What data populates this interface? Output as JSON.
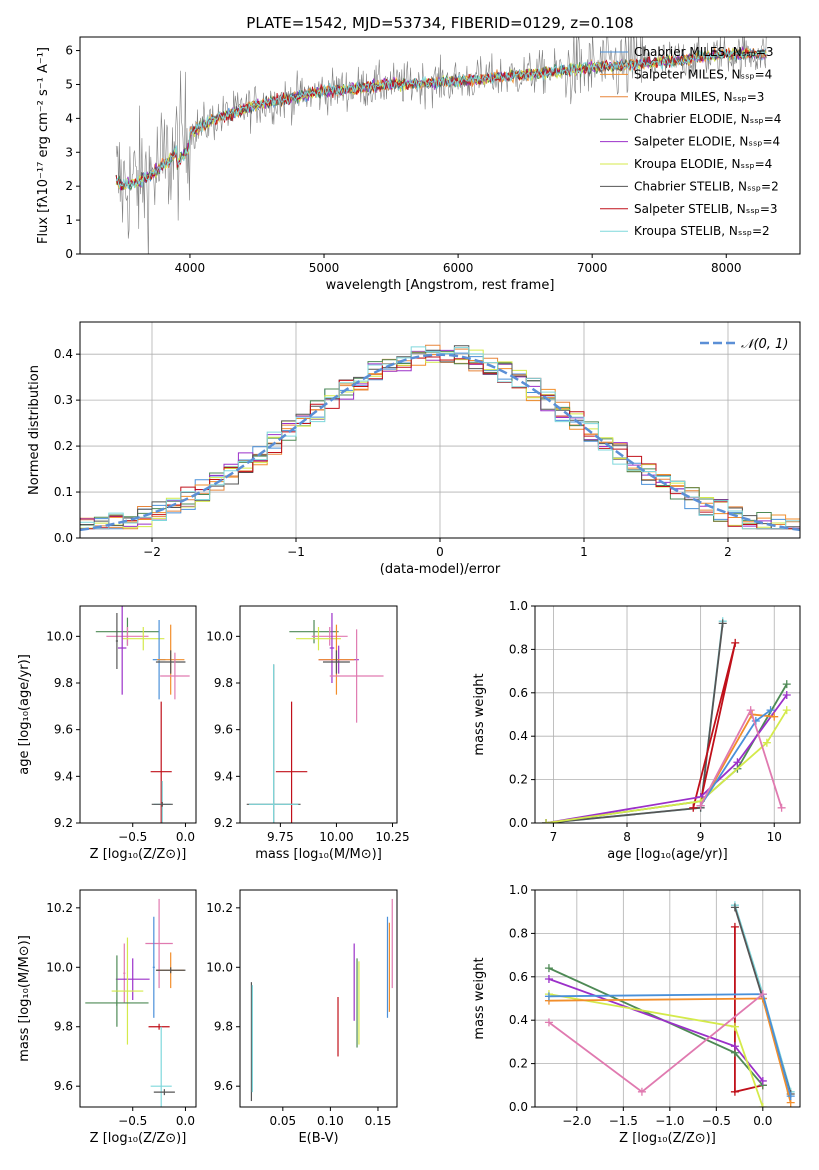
{
  "title": "PLATE=1542, MJD=53734, FIBERID=0129, z=0.108",
  "colors": {
    "chabrier_miles": "#4a90d9",
    "salpeter_miles": "#f28e2b",
    "kroupa_miles": "#e8853a",
    "chabrier_elodie": "#4e8a55",
    "salpeter_elodie": "#9b30c9",
    "kroupa_elodie": "#d4ea4b",
    "chabrier_stelib": "#555555",
    "salpeter_stelib": "#c0101a",
    "kroupa_stelib": "#7fd8dc",
    "pink": "#e07ab0",
    "gaussian": "#5b8fd6"
  },
  "chart_data": [
    {
      "id": "spectrum",
      "type": "line",
      "xlabel": "wavelength [Angstrom, rest frame]",
      "ylabel": "Flux [fλ10⁻¹⁷ erg cm⁻² s⁻¹ A⁻¹]",
      "xlim": [
        3180,
        8550
      ],
      "ylim": [
        0,
        6.4
      ],
      "xticks": [
        4000,
        5000,
        6000,
        7000,
        8000
      ],
      "yticks": [
        0,
        1,
        2,
        3,
        4,
        5,
        6
      ],
      "legend": "right",
      "series": [
        {
          "name": "Chabrier MILES, Nₛₛₚ=3"
        },
        {
          "name": "Salpeter MILES, Nₛₛₚ=4"
        },
        {
          "name": "Kroupa MILES, Nₛₛₚ=3"
        },
        {
          "name": "Chabrier ELODIE, Nₛₛₚ=4"
        },
        {
          "name": "Salpeter ELODIE, Nₛₛₚ=4"
        },
        {
          "name": "Kroupa ELODIE, Nₛₛₚ=4"
        },
        {
          "name": "Chabrier STELIB, Nₛₛₚ=2"
        },
        {
          "name": "Salpeter STELIB, Nₛₛₚ=3"
        },
        {
          "name": "Kroupa STELIB, Nₛₛₚ=2"
        }
      ],
      "continuum": {
        "x": [
          3450,
          3500,
          3600,
          3700,
          3800,
          3900,
          4000,
          4200,
          4500,
          5000,
          5500,
          6000,
          6500,
          7000,
          7500,
          8000,
          8300
        ],
        "y": [
          2.2,
          2.0,
          2.1,
          2.3,
          2.6,
          3.0,
          3.6,
          4.0,
          4.4,
          4.8,
          5.0,
          5.1,
          5.3,
          5.5,
          5.65,
          5.9,
          5.9
        ]
      }
    },
    {
      "id": "residuals",
      "type": "line",
      "xlabel": "(data-model)/error",
      "ylabel": "Normed distribution",
      "xlim": [
        -2.5,
        2.5
      ],
      "ylim": [
        0,
        0.47
      ],
      "xticks": [
        -2,
        -1,
        0,
        1,
        2
      ],
      "yticks": [
        0.0,
        0.1,
        0.2,
        0.3,
        0.4
      ],
      "grid": true,
      "legend": "top-right",
      "legend_label": "𝒩(0, 1)",
      "bin_width": 0.1
    },
    {
      "id": "age_vs_Z",
      "type": "scatter",
      "xlabel": "Z [log₁₀(Z/Z⊙)]",
      "ylabel": "age  [log₁₀(age/yr)]",
      "xlim": [
        -1.0,
        0.1
      ],
      "ylim": [
        9.2,
        10.13
      ],
      "xticks": [
        -0.5,
        0.0
      ],
      "yticks": [
        9.2,
        9.4,
        9.6,
        9.8,
        10.0
      ],
      "points": [
        {
          "x": -0.55,
          "y": 10.02,
          "xerr": 0.3,
          "yerr": 0.06,
          "c": "chabrier_elodie"
        },
        {
          "x": -0.55,
          "y": 10.0,
          "xerr": 0.2,
          "yerr": 0.04,
          "c": "pink"
        },
        {
          "x": -0.4,
          "y": 9.99,
          "xerr": 0.2,
          "yerr": 0.05,
          "c": "kroupa_elodie"
        },
        {
          "x": -0.6,
          "y": 9.95,
          "xerr": 0.04,
          "yerr": 0.2,
          "c": "salpeter_elodie"
        },
        {
          "x": -0.65,
          "y": 9.98,
          "xerr": 0.01,
          "yerr": 0.12,
          "c": "chabrier_stelib"
        },
        {
          "x": -0.25,
          "y": 9.9,
          "xerr": 0.06,
          "yerr": 0.17,
          "c": "chabrier_miles"
        },
        {
          "x": -0.14,
          "y": 9.9,
          "xerr": 0.13,
          "yerr": 0.15,
          "c": "salpeter_miles"
        },
        {
          "x": -0.14,
          "y": 9.89,
          "xerr": 0.14,
          "yerr": 0.05,
          "c": "chabrier_stelib"
        },
        {
          "x": -0.1,
          "y": 9.83,
          "xerr": 0.14,
          "yerr": 0.1,
          "c": "pink"
        },
        {
          "x": -0.23,
          "y": 9.42,
          "xerr": 0.1,
          "yerr": 0.3,
          "c": "salpeter_stelib"
        },
        {
          "x": -0.22,
          "y": 9.28,
          "xerr": 0.08,
          "yerr": 0.1,
          "c": "kroupa_stelib"
        },
        {
          "x": -0.22,
          "y": 9.28,
          "xerr": 0.1,
          "yerr": 0.01,
          "c": "chabrier_stelib"
        }
      ]
    },
    {
      "id": "age_vs_mass",
      "type": "scatter",
      "xlabel": "mass [log₁₀(M/M⊙)]",
      "xlim": [
        9.57,
        10.27
      ],
      "ylim": [
        9.2,
        10.13
      ],
      "xticks": [
        9.75,
        10.0,
        10.25
      ],
      "yticks": [
        9.2,
        9.4,
        9.6,
        9.8,
        10.0
      ],
      "points": [
        {
          "x": 9.9,
          "y": 10.02,
          "xerr": 0.11,
          "yerr": 0.05,
          "c": "chabrier_elodie"
        },
        {
          "x": 9.97,
          "y": 10.0,
          "xerr": 0.08,
          "yerr": 0.04,
          "c": "pink"
        },
        {
          "x": 9.92,
          "y": 9.99,
          "xerr": 0.1,
          "yerr": 0.05,
          "c": "kroupa_elodie"
        },
        {
          "x": 9.98,
          "y": 9.95,
          "xerr": 0.01,
          "yerr": 0.15,
          "c": "salpeter_elodie"
        },
        {
          "x": 10.01,
          "y": 9.9,
          "xerr": 0.09,
          "yerr": 0.06,
          "c": "salpeter_elodie"
        },
        {
          "x": 10.0,
          "y": 9.9,
          "xerr": 0.08,
          "yerr": 0.15,
          "c": "salpeter_miles"
        },
        {
          "x": 10.0,
          "y": 9.89,
          "xerr": 0.06,
          "yerr": 0.05,
          "c": "chabrier_stelib"
        },
        {
          "x": 10.09,
          "y": 9.83,
          "xerr": 0.12,
          "yerr": 0.2,
          "c": "pink"
        },
        {
          "x": 9.8,
          "y": 9.42,
          "xerr": 0.07,
          "yerr": 0.3,
          "c": "salpeter_stelib"
        },
        {
          "x": 9.72,
          "y": 9.28,
          "xerr": 0.12,
          "yerr": 0.6,
          "c": "chabrier_stelib"
        },
        {
          "x": 9.72,
          "y": 9.28,
          "xerr": 0.11,
          "yerr": 0.6,
          "c": "kroupa_stelib"
        }
      ]
    },
    {
      "id": "weight_vs_age",
      "type": "line",
      "xlabel": "age  [log₁₀(age/yr)]",
      "ylabel": "mass weight",
      "xlim": [
        6.75,
        10.35
      ],
      "ylim": [
        0,
        1.0
      ],
      "xticks": [
        7,
        8,
        9,
        10
      ],
      "yticks": [
        0.0,
        0.2,
        0.4,
        0.6,
        0.8,
        1.0
      ],
      "grid": true,
      "series": [
        {
          "c": "kroupa_stelib",
          "x": [
            6.9,
            9.0,
            9.3
          ],
          "y": [
            0.0,
            0.07,
            0.93
          ]
        },
        {
          "c": "chabrier_stelib",
          "x": [
            6.9,
            9.0,
            9.3
          ],
          "y": [
            0.0,
            0.07,
            0.92
          ]
        },
        {
          "c": "salpeter_stelib",
          "x": [
            9.0,
            9.47,
            8.9
          ],
          "y": [
            0.1,
            0.83,
            0.07
          ]
        },
        {
          "c": "chabrier_elodie",
          "x": [
            6.9,
            9.0,
            9.5,
            10.17
          ],
          "y": [
            0.0,
            0.1,
            0.25,
            0.64
          ]
        },
        {
          "c": "salpeter_elodie",
          "x": [
            6.9,
            9.0,
            9.5,
            10.17
          ],
          "y": [
            0.0,
            0.12,
            0.28,
            0.59
          ]
        },
        {
          "c": "kroupa_elodie",
          "x": [
            6.9,
            9.0,
            9.9,
            10.17
          ],
          "y": [
            0.0,
            0.1,
            0.37,
            0.52
          ]
        },
        {
          "c": "salpeter_miles",
          "x": [
            9.0,
            9.7,
            10.0
          ],
          "y": [
            0.08,
            0.5,
            0.49
          ]
        },
        {
          "c": "chabrier_miles",
          "x": [
            9.0,
            9.75,
            9.95
          ],
          "y": [
            0.08,
            0.47,
            0.52
          ]
        },
        {
          "c": "pink",
          "x": [
            9.0,
            9.68,
            10.1
          ],
          "y": [
            0.08,
            0.52,
            0.07
          ]
        }
      ]
    },
    {
      "id": "mass_vs_Z",
      "type": "scatter",
      "xlabel": "Z [log₁₀(Z/Z⊙)]",
      "ylabel": "mass [log₁₀(M/M⊙)]",
      "xlim": [
        -1.0,
        0.1
      ],
      "ylim": [
        9.53,
        10.26
      ],
      "xticks": [
        -0.5,
        0.0
      ],
      "yticks": [
        9.6,
        9.8,
        10.0,
        10.2
      ],
      "points": [
        {
          "x": -0.25,
          "y": 10.08,
          "xerr": 0.13,
          "yerr": 0.15,
          "c": "pink"
        },
        {
          "x": -0.3,
          "y": 10.0,
          "xerr": 0.01,
          "yerr": 0.17,
          "c": "chabrier_miles"
        },
        {
          "x": -0.14,
          "y": 9.99,
          "xerr": 0.13,
          "yerr": 0.06,
          "c": "salpeter_miles"
        },
        {
          "x": -0.14,
          "y": 9.99,
          "xerr": 0.14,
          "yerr": 0.01,
          "c": "chabrier_stelib"
        },
        {
          "x": -0.58,
          "y": 9.98,
          "xerr": 0.01,
          "yerr": 0.1,
          "c": "pink"
        },
        {
          "x": -0.5,
          "y": 9.96,
          "xerr": 0.16,
          "yerr": 0.07,
          "c": "salpeter_elodie"
        },
        {
          "x": -0.65,
          "y": 9.92,
          "xerr": 0.01,
          "yerr": 0.12,
          "c": "chabrier_elodie"
        },
        {
          "x": -0.55,
          "y": 9.92,
          "xerr": 0.15,
          "yerr": 0.18,
          "c": "kroupa_elodie"
        },
        {
          "x": -0.65,
          "y": 9.88,
          "xerr": 0.3,
          "yerr": 0.01,
          "c": "chabrier_elodie"
        },
        {
          "x": -0.25,
          "y": 9.8,
          "xerr": 0.1,
          "yerr": 0.01,
          "c": "salpeter_stelib"
        },
        {
          "x": -0.23,
          "y": 9.6,
          "xerr": 0.1,
          "yerr": 0.2,
          "c": "kroupa_stelib"
        },
        {
          "x": -0.2,
          "y": 9.58,
          "xerr": 0.1,
          "yerr": 0.01,
          "c": "chabrier_stelib"
        }
      ]
    },
    {
      "id": "mass_vs_ebv",
      "type": "scatter",
      "xlabel": "E(B-V)",
      "xlim": [
        0.005,
        0.17
      ],
      "ylim": [
        9.53,
        10.26
      ],
      "xticks": [
        0.05,
        0.1,
        0.15
      ],
      "yticks": [
        9.6,
        9.8,
        10.0,
        10.2
      ],
      "points": [
        {
          "x": 0.017,
          "y": 9.75,
          "yerr": 0.2,
          "c": "chabrier_stelib"
        },
        {
          "x": 0.018,
          "y": 9.76,
          "yerr": 0.18,
          "c": "kroupa_stelib"
        },
        {
          "x": 0.108,
          "y": 9.8,
          "yerr": 0.1,
          "c": "salpeter_stelib"
        },
        {
          "x": 0.125,
          "y": 9.95,
          "yerr": 0.13,
          "c": "salpeter_elodie"
        },
        {
          "x": 0.128,
          "y": 9.88,
          "yerr": 0.15,
          "c": "chabrier_elodie"
        },
        {
          "x": 0.13,
          "y": 9.88,
          "yerr": 0.14,
          "c": "kroupa_elodie"
        },
        {
          "x": 0.16,
          "y": 10.0,
          "yerr": 0.17,
          "c": "chabrier_miles"
        },
        {
          "x": 0.162,
          "y": 10.0,
          "yerr": 0.15,
          "c": "salpeter_miles"
        },
        {
          "x": 0.165,
          "y": 10.08,
          "yerr": 0.15,
          "c": "pink"
        }
      ]
    },
    {
      "id": "weight_vs_Z",
      "type": "line",
      "xlabel": "Z [log₁₀(Z/Z⊙)]",
      "ylabel": "mass weight",
      "xlim": [
        -2.45,
        0.4
      ],
      "ylim": [
        0,
        1.0
      ],
      "xticks": [
        -2.0,
        -1.5,
        -1.0,
        -0.5,
        0.0
      ],
      "yticks": [
        0.0,
        0.2,
        0.4,
        0.6,
        0.8,
        1.0
      ],
      "grid": true,
      "series": [
        {
          "c": "kroupa_stelib",
          "x": [
            -0.3,
            0.0,
            0.3
          ],
          "y": [
            0.93,
            0.52,
            0.07
          ]
        },
        {
          "c": "chabrier_stelib",
          "x": [
            -0.3,
            0.0,
            0.3
          ],
          "y": [
            0.92,
            0.5,
            0.06
          ]
        },
        {
          "c": "salpeter_stelib",
          "x": [
            -0.3,
            -0.3,
            0.0
          ],
          "y": [
            0.83,
            0.07,
            0.1
          ]
        },
        {
          "c": "chabrier_elodie",
          "x": [
            -2.3,
            -0.3,
            0.0
          ],
          "y": [
            0.64,
            0.25,
            0.1
          ]
        },
        {
          "c": "salpeter_elodie",
          "x": [
            -2.3,
            -0.3,
            0.0
          ],
          "y": [
            0.59,
            0.28,
            0.12
          ]
        },
        {
          "c": "kroupa_elodie",
          "x": [
            -2.3,
            -0.3,
            0.0
          ],
          "y": [
            0.52,
            0.37,
            0.0
          ]
        },
        {
          "c": "salpeter_miles",
          "x": [
            -2.3,
            0.0,
            0.3
          ],
          "y": [
            0.49,
            0.5,
            0.02
          ]
        },
        {
          "c": "chabrier_miles",
          "x": [
            -2.3,
            0.0,
            0.3
          ],
          "y": [
            0.51,
            0.52,
            0.05
          ]
        },
        {
          "c": "pink",
          "x": [
            -2.3,
            -1.3,
            0.0
          ],
          "y": [
            0.39,
            0.07,
            0.52
          ]
        }
      ]
    }
  ]
}
